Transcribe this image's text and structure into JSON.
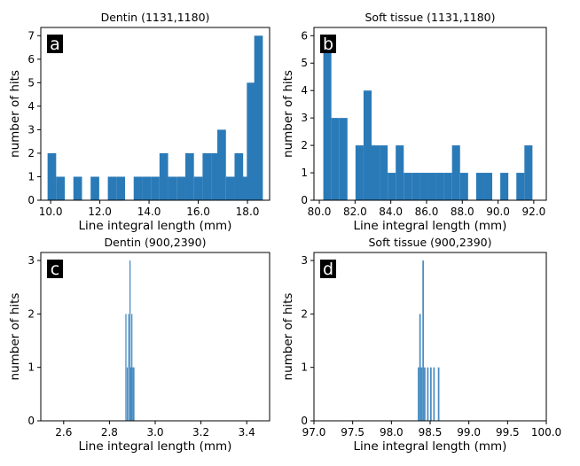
{
  "colors": {
    "bar": "#2a7ab8",
    "axis": "#000000",
    "label_bg": "#000000",
    "label_fg": "#ffffff"
  },
  "chart_data": [
    {
      "type": "bar",
      "panel_label": "a",
      "title": "Dentin (1131,1180)",
      "xlabel": "Line integral length (mm)",
      "ylabel": "number of hits",
      "xlim": [
        9.6,
        18.9
      ],
      "ylim": [
        0,
        7.35
      ],
      "xticks": [
        10.0,
        12.0,
        14.0,
        16.0,
        18.0
      ],
      "xtick_labels": [
        "10.0",
        "12.0",
        "14.0",
        "16.0",
        "18.0"
      ],
      "yticks": [
        0,
        1,
        2,
        3,
        4,
        5,
        6,
        7
      ],
      "ytick_labels": [
        "0",
        "1",
        "2",
        "3",
        "4",
        "5",
        "6",
        "7"
      ],
      "bin_width": 0.35,
      "bins": [
        {
          "x": 10.05,
          "count": 2
        },
        {
          "x": 10.4,
          "count": 1
        },
        {
          "x": 11.1,
          "count": 1
        },
        {
          "x": 11.8,
          "count": 1
        },
        {
          "x": 12.5,
          "count": 1
        },
        {
          "x": 12.85,
          "count": 1
        },
        {
          "x": 13.55,
          "count": 1
        },
        {
          "x": 13.9,
          "count": 1
        },
        {
          "x": 14.25,
          "count": 1
        },
        {
          "x": 14.6,
          "count": 2
        },
        {
          "x": 14.95,
          "count": 1
        },
        {
          "x": 15.3,
          "count": 1
        },
        {
          "x": 15.65,
          "count": 2
        },
        {
          "x": 16.0,
          "count": 1
        },
        {
          "x": 16.35,
          "count": 2
        },
        {
          "x": 16.7,
          "count": 2
        },
        {
          "x": 16.95,
          "count": 3
        },
        {
          "x": 17.3,
          "count": 1
        },
        {
          "x": 17.65,
          "count": 2
        },
        {
          "x": 17.95,
          "count": 1
        },
        {
          "x": 18.15,
          "count": 5
        },
        {
          "x": 18.45,
          "count": 7
        }
      ]
    },
    {
      "type": "bar",
      "panel_label": "b",
      "title": "Soft tissue (1131,1180)",
      "xlabel": "Line integral length (mm)",
      "ylabel": "number of hits",
      "xlim": [
        79.7,
        92.7
      ],
      "ylim": [
        0,
        6.3
      ],
      "xticks": [
        80.0,
        82.0,
        84.0,
        86.0,
        88.0,
        90.0,
        92.0
      ],
      "xtick_labels": [
        "80.0",
        "82.0",
        "84.0",
        "86.0",
        "88.0",
        "90.0",
        "92.0"
      ],
      "yticks": [
        0,
        1,
        2,
        3,
        4,
        5,
        6
      ],
      "ytick_labels": [
        "0",
        "1",
        "2",
        "3",
        "4",
        "5",
        "6"
      ],
      "bin_width": 0.45,
      "bins": [
        {
          "x": 80.45,
          "count": 6
        },
        {
          "x": 80.9,
          "count": 3
        },
        {
          "x": 81.35,
          "count": 3
        },
        {
          "x": 82.25,
          "count": 2
        },
        {
          "x": 82.7,
          "count": 4
        },
        {
          "x": 83.15,
          "count": 2
        },
        {
          "x": 83.6,
          "count": 2
        },
        {
          "x": 84.05,
          "count": 1
        },
        {
          "x": 84.5,
          "count": 2
        },
        {
          "x": 84.95,
          "count": 1
        },
        {
          "x": 85.4,
          "count": 1
        },
        {
          "x": 85.85,
          "count": 1
        },
        {
          "x": 86.3,
          "count": 1
        },
        {
          "x": 86.75,
          "count": 1
        },
        {
          "x": 87.2,
          "count": 1
        },
        {
          "x": 87.65,
          "count": 2
        },
        {
          "x": 88.1,
          "count": 1
        },
        {
          "x": 89.0,
          "count": 1
        },
        {
          "x": 89.45,
          "count": 1
        },
        {
          "x": 90.35,
          "count": 1
        },
        {
          "x": 91.25,
          "count": 1
        },
        {
          "x": 91.7,
          "count": 2
        }
      ]
    },
    {
      "type": "bar",
      "panel_label": "c",
      "title": "Dentin (900,2390)",
      "xlabel": "Line integral length (mm)",
      "ylabel": "number of hits",
      "xlim": [
        2.5,
        3.5
      ],
      "ylim": [
        0,
        3.15
      ],
      "xticks": [
        2.6,
        2.8,
        3.0,
        3.2,
        3.4
      ],
      "xtick_labels": [
        "2.6",
        "2.8",
        "3.0",
        "3.2",
        "3.4"
      ],
      "yticks": [
        0,
        1,
        2,
        3
      ],
      "ytick_labels": [
        "0",
        "1",
        "2",
        "3"
      ],
      "bin_width": 0.005,
      "bins": [
        {
          "x": 2.872,
          "count": 2
        },
        {
          "x": 2.878,
          "count": 1
        },
        {
          "x": 2.884,
          "count": 2
        },
        {
          "x": 2.89,
          "count": 3
        },
        {
          "x": 2.894,
          "count": 1
        },
        {
          "x": 2.898,
          "count": 2
        },
        {
          "x": 2.903,
          "count": 1
        },
        {
          "x": 2.907,
          "count": 1
        }
      ]
    },
    {
      "type": "bar",
      "panel_label": "d",
      "title": "Soft tissue (900,2390)",
      "xlabel": "Line integral length (mm)",
      "ylabel": "number of hits",
      "xlim": [
        97.0,
        100.0
      ],
      "ylim": [
        0,
        3.15
      ],
      "xticks": [
        97.0,
        97.5,
        98.0,
        98.5,
        99.0,
        99.5,
        100.0
      ],
      "xtick_labels": [
        "97.0",
        "97.5",
        "98.0",
        "98.5",
        "99.0",
        "99.5",
        "100.0"
      ],
      "yticks": [
        0,
        1,
        2,
        3
      ],
      "ytick_labels": [
        "0",
        "1",
        "2",
        "3"
      ],
      "bin_width": 0.02,
      "bins": [
        {
          "x": 98.35,
          "count": 1
        },
        {
          "x": 98.37,
          "count": 2
        },
        {
          "x": 98.39,
          "count": 1
        },
        {
          "x": 98.41,
          "count": 3
        },
        {
          "x": 98.43,
          "count": 1
        },
        {
          "x": 98.47,
          "count": 1
        },
        {
          "x": 98.51,
          "count": 1
        },
        {
          "x": 98.55,
          "count": 1
        },
        {
          "x": 98.61,
          "count": 1
        }
      ]
    }
  ]
}
